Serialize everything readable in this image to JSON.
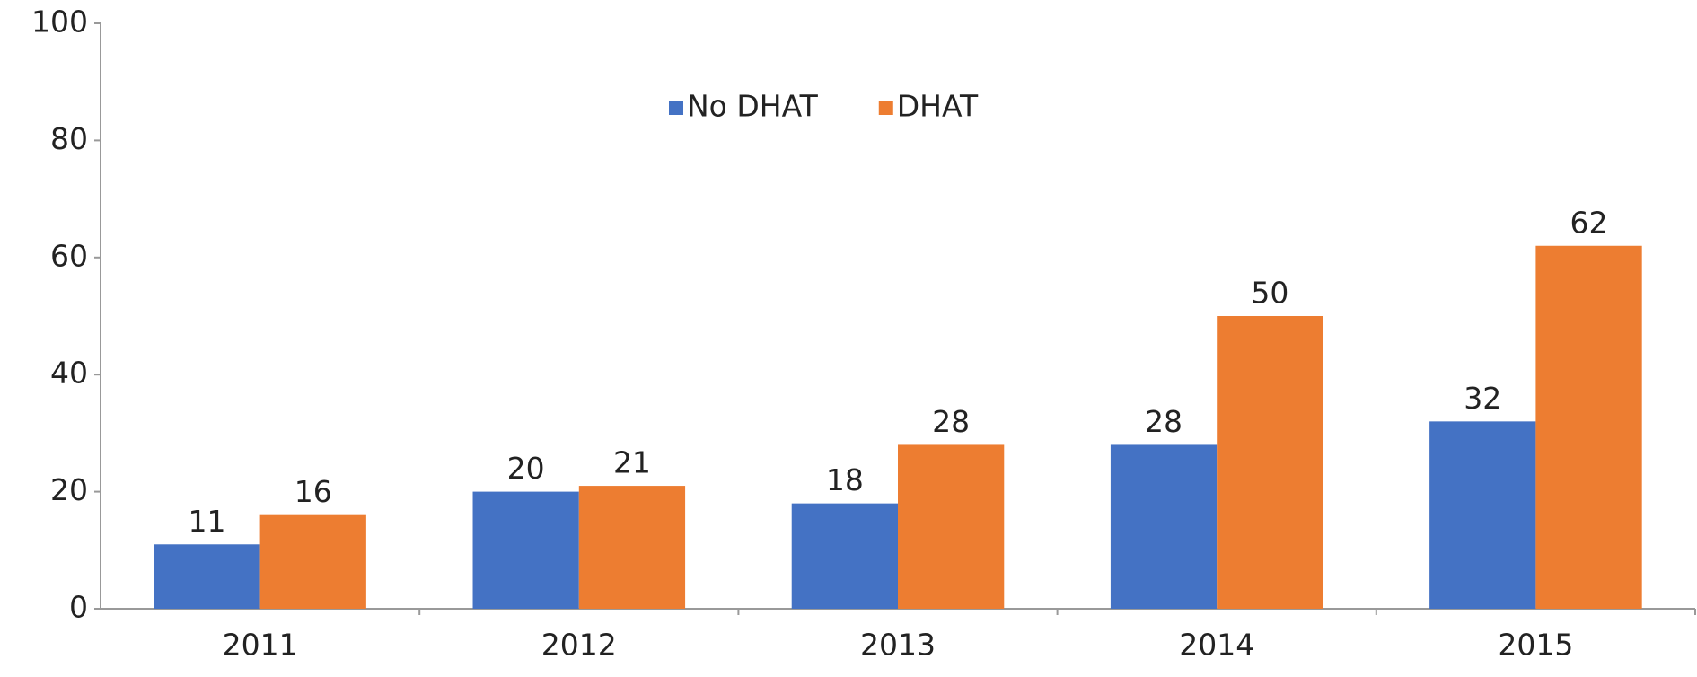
{
  "chart_data": {
    "type": "bar",
    "categories": [
      "2011",
      "2012",
      "2013",
      "2014",
      "2015"
    ],
    "series": [
      {
        "name": "No DHAT",
        "color": "#4472c4",
        "values": [
          11,
          20,
          18,
          28,
          32
        ]
      },
      {
        "name": "DHAT",
        "color": "#ed7d31",
        "values": [
          16,
          21,
          28,
          50,
          62
        ]
      }
    ],
    "ylim": [
      0,
      100
    ],
    "yticks": [
      0,
      20,
      40,
      60,
      80,
      100
    ],
    "grid": false,
    "legend": "top"
  }
}
